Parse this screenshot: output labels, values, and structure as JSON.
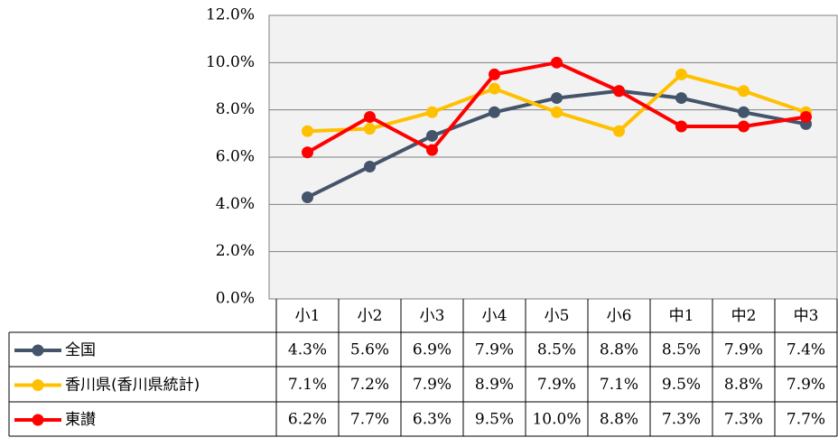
{
  "chart_data": {
    "type": "line",
    "categories": [
      "小1",
      "小2",
      "小3",
      "小4",
      "小5",
      "小6",
      "中1",
      "中2",
      "中3"
    ],
    "series": [
      {
        "name": "全国",
        "color": "#44546a",
        "values": [
          4.3,
          5.6,
          6.9,
          7.9,
          8.5,
          8.8,
          8.5,
          7.9,
          7.4
        ],
        "value_labels": [
          "4.3%",
          "5.6%",
          "6.9%",
          "7.9%",
          "8.5%",
          "8.8%",
          "8.5%",
          "7.9%",
          "7.4%"
        ]
      },
      {
        "name": "香川県(香川県統計)",
        "color": "#ffc000",
        "values": [
          7.1,
          7.2,
          7.9,
          8.9,
          7.9,
          7.1,
          9.5,
          8.8,
          7.9
        ],
        "value_labels": [
          "7.1%",
          "7.2%",
          "7.9%",
          "8.9%",
          "7.9%",
          "7.1%",
          "9.5%",
          "8.8%",
          "7.9%"
        ]
      },
      {
        "name": "東讃",
        "color": "#ff0000",
        "values": [
          6.2,
          7.7,
          6.3,
          9.5,
          10.0,
          8.8,
          7.3,
          7.3,
          7.7
        ],
        "value_labels": [
          "6.2%",
          "7.7%",
          "6.3%",
          "9.5%",
          "10.0%",
          "8.8%",
          "7.3%",
          "7.3%",
          "7.7%"
        ]
      }
    ],
    "ylim": [
      0,
      12
    ],
    "yticks": [
      {
        "value": 0,
        "label": "0.0%"
      },
      {
        "value": 2,
        "label": "2.0%"
      },
      {
        "value": 4,
        "label": "4.0%"
      },
      {
        "value": 6,
        "label": "6.0%"
      },
      {
        "value": 8,
        "label": "8.0%"
      },
      {
        "value": 10,
        "label": "10.0%"
      },
      {
        "value": 12,
        "label": "12.0%"
      }
    ],
    "grid": true
  }
}
